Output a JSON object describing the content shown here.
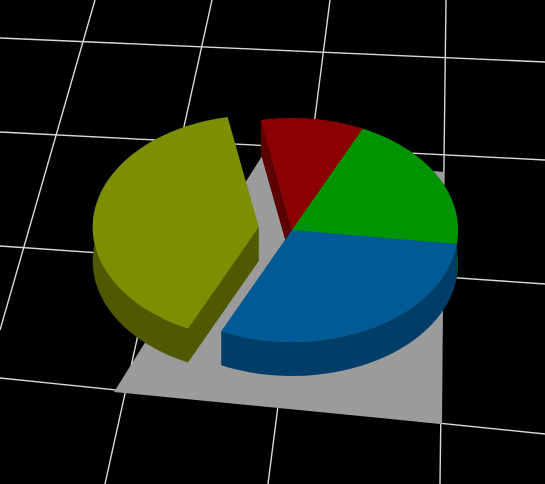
{
  "colors": {
    "background": "#000000",
    "grid_lines": "#d9d9d9",
    "base_plate": "#9b9b9b"
  },
  "chart_data": {
    "type": "pie",
    "title": "",
    "three_d": true,
    "exploded": true,
    "slices": [
      {
        "value": 0.1,
        "color_top": "#8b0000",
        "color_side": "#5c0000",
        "explode": 0.0
      },
      {
        "value": 0.2,
        "color_top": "#009400",
        "color_side": "#006400",
        "explode": 0.0
      },
      {
        "value": 0.3,
        "color_top": "#005a96",
        "color_side": "#003e69",
        "explode": 0.0
      },
      {
        "value": 0.4,
        "color_top": "#7c8f00",
        "color_side": "#4f5a00",
        "explode": 0.28
      }
    ],
    "legend": null
  }
}
